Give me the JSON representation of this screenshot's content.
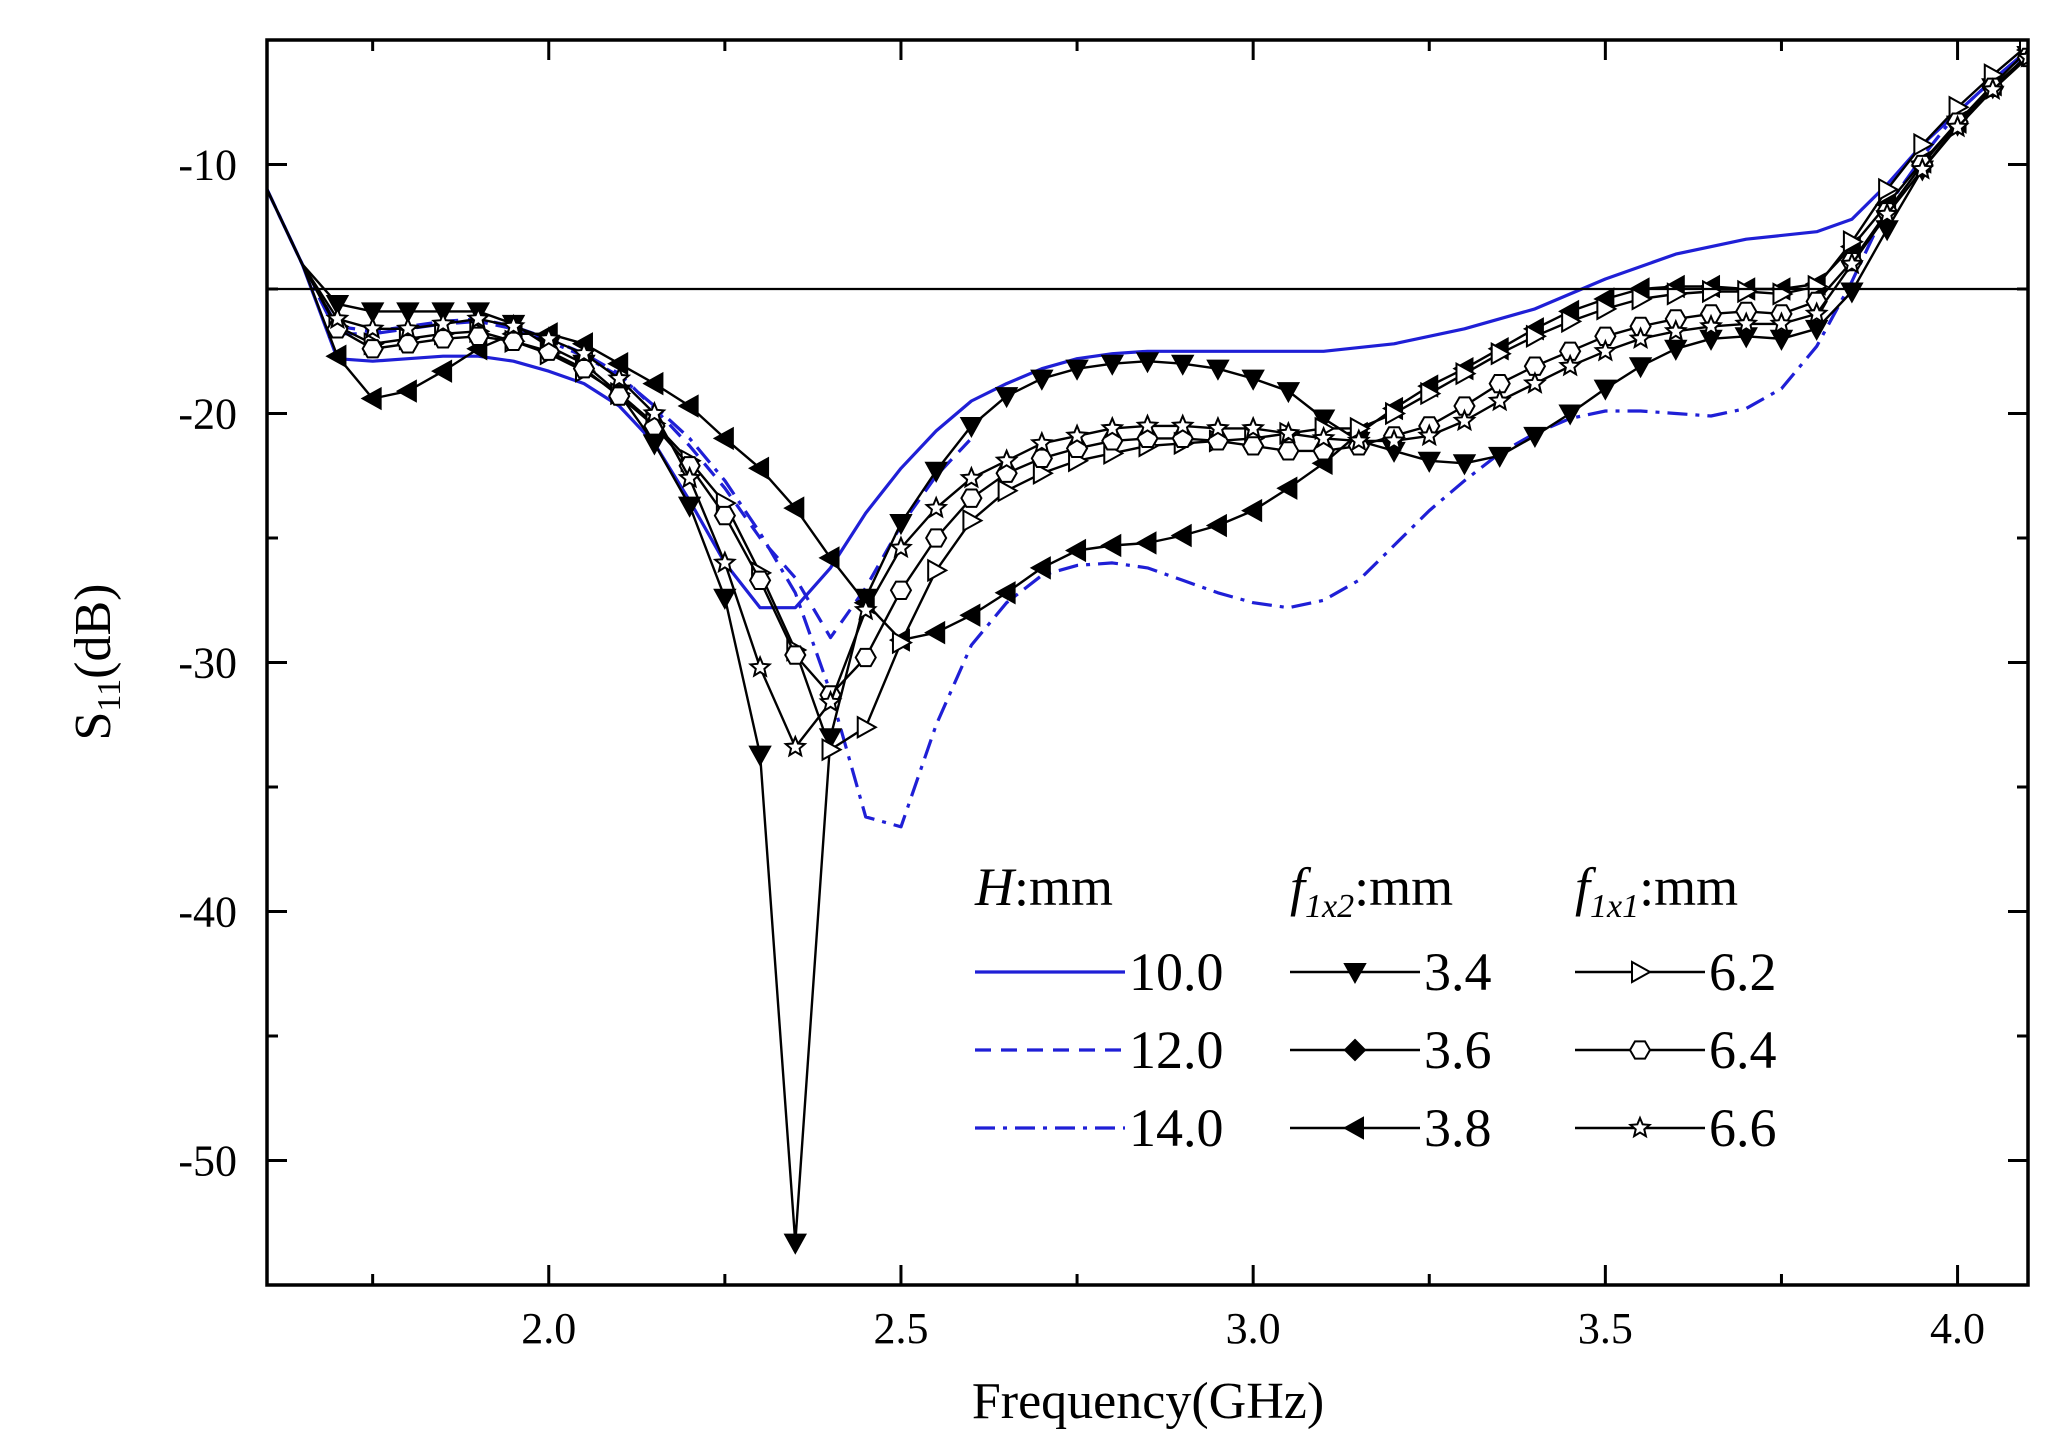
{
  "chart_data": {
    "type": "line",
    "title": "",
    "xlabel": "Frequency(GHz)",
    "ylabel_main": "S",
    "ylabel_sub": "11",
    "ylabel_tail": "(dB)",
    "xlim": [
      1.6,
      4.1
    ],
    "ylim": [
      -55,
      -5
    ],
    "xticks": [
      2.0,
      2.5,
      3.0,
      3.5,
      4.0
    ],
    "xtick_labels": [
      "2.0",
      "2.5",
      "3.0",
      "3.5",
      "4.0"
    ],
    "yticks": [
      -10,
      -20,
      -30,
      -40,
      -50
    ],
    "ytick_labels": [
      "-10",
      "-20",
      "-30",
      "-40",
      "-50"
    ],
    "reference_line_y": -15,
    "legend": {
      "placement": "bottom-right",
      "group_heads": [
        {
          "italic": "H",
          "sub": "",
          "rest": ":mm"
        },
        {
          "italic": "f",
          "sub": "1x2",
          "rest": ":mm"
        },
        {
          "italic": "f",
          "sub": "1x1",
          "rest": ":mm"
        }
      ]
    },
    "series": [
      {
        "name": "10.0",
        "group": "H",
        "color": "#1f1fd6",
        "dash": "solid",
        "marker": "none",
        "x": [
          1.6,
          1.65,
          1.7,
          1.75,
          1.8,
          1.85,
          1.9,
          1.95,
          2.0,
          2.05,
          2.1,
          2.15,
          2.2,
          2.25,
          2.3,
          2.35,
          2.4,
          2.45,
          2.5,
          2.55,
          2.6,
          2.65,
          2.7,
          2.75,
          2.8,
          2.85,
          2.9,
          2.95,
          3.0,
          3.05,
          3.1,
          3.2,
          3.3,
          3.4,
          3.5,
          3.6,
          3.7,
          3.8,
          3.85,
          3.9,
          3.95,
          4.0,
          4.05,
          4.1
        ],
        "y": [
          -11,
          -14,
          -17.8,
          -17.9,
          -17.8,
          -17.7,
          -17.7,
          -17.9,
          -18.3,
          -18.8,
          -19.7,
          -21.2,
          -23.5,
          -26,
          -27.8,
          -27.8,
          -26.2,
          -24,
          -22.2,
          -20.7,
          -19.5,
          -18.8,
          -18.2,
          -17.8,
          -17.6,
          -17.5,
          -17.5,
          -17.5,
          -17.5,
          -17.5,
          -17.5,
          -17.2,
          -16.6,
          -15.8,
          -14.6,
          -13.6,
          -13,
          -12.7,
          -12.2,
          -10.8,
          -9.2,
          -7.9,
          -6.6,
          -5.4
        ]
      },
      {
        "name": "12.0",
        "group": "H",
        "color": "#1f1fd6",
        "dash": "dashed",
        "marker": "none",
        "x": [
          1.6,
          1.65,
          1.7,
          1.75,
          1.8,
          1.85,
          1.9,
          1.95,
          2.0,
          2.05,
          2.1,
          2.15,
          2.2,
          2.25,
          2.3,
          2.35,
          2.4,
          2.45,
          2.5,
          2.55,
          2.6
        ],
        "y": [
          -11,
          -14,
          -16.5,
          -16.7,
          -16.5,
          -16.3,
          -16.2,
          -16.5,
          -17,
          -17.6,
          -18.4,
          -19.8,
          -21.3,
          -23,
          -25,
          -26.6,
          -29,
          -27,
          -24.5,
          -22.5,
          -21
        ]
      },
      {
        "name": "14.0",
        "group": "H",
        "color": "#1f1fd6",
        "dash": "dashdot",
        "marker": "none",
        "x": [
          1.6,
          1.65,
          1.7,
          1.75,
          1.8,
          1.85,
          1.9,
          1.95,
          2.0,
          2.05,
          2.1,
          2.15,
          2.2,
          2.25,
          2.3,
          2.35,
          2.4,
          2.45,
          2.5,
          2.55,
          2.6,
          2.65,
          2.7,
          2.75,
          2.8,
          2.85,
          2.9,
          2.95,
          3.0,
          3.05,
          3.1,
          3.15,
          3.2,
          3.25,
          3.3,
          3.35,
          3.4,
          3.45,
          3.5,
          3.55,
          3.6,
          3.65,
          3.7,
          3.75,
          3.8,
          3.85,
          3.9,
          3.95,
          4.0,
          4.05,
          4.1
        ],
        "y": [
          -11,
          -14,
          -16.8,
          -16.8,
          -16.6,
          -16.4,
          -16.3,
          -16.6,
          -17.1,
          -17.7,
          -18.5,
          -19.7,
          -21,
          -22.7,
          -24.8,
          -27.2,
          -31.2,
          -36.2,
          -36.6,
          -32.5,
          -29.3,
          -27.6,
          -26.5,
          -26.1,
          -26,
          -26.2,
          -26.7,
          -27.2,
          -27.6,
          -27.8,
          -27.5,
          -26.7,
          -25.3,
          -23.9,
          -22.7,
          -21.6,
          -20.8,
          -20.2,
          -19.9,
          -19.9,
          -20,
          -20.1,
          -19.8,
          -19,
          -17.3,
          -14.7,
          -11.7,
          -9.7,
          -7.9,
          -6.6,
          -5.5
        ]
      },
      {
        "name": "3.4",
        "group": "f1x2",
        "color": "#000000",
        "dash": "solid",
        "marker": "triangle-down",
        "x": [
          1.6,
          1.65,
          1.7,
          1.75,
          1.8,
          1.85,
          1.9,
          1.95,
          2.0,
          2.05,
          2.1,
          2.15,
          2.2,
          2.25,
          2.3,
          2.35,
          2.4,
          2.45,
          2.5,
          2.55,
          2.6,
          2.65,
          2.7,
          2.75,
          2.8,
          2.85,
          2.9,
          2.95,
          3.0,
          3.05,
          3.1,
          3.15,
          3.2,
          3.25,
          3.3,
          3.35,
          3.4,
          3.45,
          3.5,
          3.55,
          3.6,
          3.65,
          3.7,
          3.75,
          3.8,
          3.85,
          3.9,
          3.95,
          4.0,
          4.05,
          4.1
        ],
        "y": [
          -11,
          -14,
          -15.6,
          -15.9,
          -15.9,
          -15.9,
          -15.9,
          -16.4,
          -17.3,
          -18,
          -19.2,
          -21.2,
          -23.7,
          -27.4,
          -33.7,
          -53.3,
          -33,
          -27.4,
          -24.4,
          -22.3,
          -20.5,
          -19.3,
          -18.6,
          -18.2,
          -18,
          -17.9,
          -18,
          -18.2,
          -18.6,
          -19.1,
          -20.2,
          -21.1,
          -21.5,
          -21.9,
          -22,
          -21.7,
          -20.9,
          -20,
          -19,
          -18.1,
          -17.4,
          -17,
          -16.9,
          -17,
          -16.6,
          -15.1,
          -12.6,
          -10.2,
          -8.4,
          -6.9,
          -5.6
        ]
      },
      {
        "name": "3.6",
        "group": "f1x2",
        "color": "#000000",
        "dash": "solid",
        "marker": "diamond",
        "x": [],
        "y": []
      },
      {
        "name": "3.8",
        "group": "f1x2",
        "color": "#000000",
        "dash": "solid",
        "marker": "triangle-left",
        "x": [
          1.6,
          1.65,
          1.7,
          1.75,
          1.8,
          1.85,
          1.9,
          1.95,
          2.0,
          2.05,
          2.1,
          2.15,
          2.2,
          2.25,
          2.3,
          2.35,
          2.4,
          2.45,
          2.5,
          2.55,
          2.6,
          2.65,
          2.7,
          2.75,
          2.8,
          2.85,
          2.9,
          2.95,
          3.0,
          3.05,
          3.1,
          3.15,
          3.2,
          3.25,
          3.3,
          3.35,
          3.4,
          3.45,
          3.5,
          3.55,
          3.6,
          3.65,
          3.7,
          3.75,
          3.8,
          3.85,
          3.9,
          3.95,
          4.0,
          4.05,
          4.1
        ],
        "y": [
          -11,
          -14,
          -17.7,
          -19.4,
          -19.1,
          -18.3,
          -17.4,
          -16.8,
          -16.8,
          -17.2,
          -18,
          -18.8,
          -19.7,
          -21,
          -22.2,
          -23.8,
          -25.8,
          -27.6,
          -29.1,
          -28.8,
          -28.1,
          -27.2,
          -26.2,
          -25.5,
          -25.3,
          -25.2,
          -24.9,
          -24.5,
          -23.9,
          -23,
          -22,
          -20.8,
          -19.8,
          -18.9,
          -18.2,
          -17.4,
          -16.6,
          -15.9,
          -15.4,
          -15,
          -14.9,
          -14.9,
          -15,
          -15,
          -14.8,
          -13.3,
          -11.6,
          -9.9,
          -8.3,
          -6.8,
          -5.4
        ]
      },
      {
        "name": "6.2",
        "group": "f1x1",
        "color": "#000000",
        "dash": "solid",
        "marker": "triangle-right-open",
        "x": [
          1.6,
          1.65,
          1.7,
          1.75,
          1.8,
          1.85,
          1.9,
          1.95,
          2.0,
          2.05,
          2.1,
          2.15,
          2.2,
          2.25,
          2.3,
          2.35,
          2.4,
          2.45,
          2.5,
          2.55,
          2.6,
          2.65,
          2.7,
          2.75,
          2.8,
          2.85,
          2.9,
          2.95,
          3.0,
          3.05,
          3.1,
          3.15,
          3.2,
          3.25,
          3.3,
          3.35,
          3.4,
          3.45,
          3.5,
          3.55,
          3.6,
          3.65,
          3.7,
          3.75,
          3.8,
          3.85,
          3.9,
          3.95,
          4.0,
          4.05,
          4.1
        ],
        "y": [
          -11,
          -14,
          -16.5,
          -17.2,
          -17,
          -16.8,
          -16.7,
          -17.1,
          -17.6,
          -18.3,
          -19.2,
          -20.4,
          -21.9,
          -23.6,
          -26.4,
          -29.5,
          -33.5,
          -32.6,
          -29.2,
          -26.3,
          -24.3,
          -23.1,
          -22.4,
          -21.9,
          -21.6,
          -21.3,
          -21.2,
          -21.1,
          -21,
          -20.8,
          -20.6,
          -20.6,
          -20,
          -19.2,
          -18.4,
          -17.6,
          -16.9,
          -16.3,
          -15.8,
          -15.4,
          -15.2,
          -15.1,
          -15.1,
          -15.2,
          -14.9,
          -13.1,
          -11,
          -9.2,
          -7.7,
          -6.4,
          -5.2
        ]
      },
      {
        "name": "6.4",
        "group": "f1x1",
        "color": "#000000",
        "dash": "solid",
        "marker": "hexagon-open",
        "x": [
          1.6,
          1.65,
          1.7,
          1.75,
          1.8,
          1.85,
          1.9,
          1.95,
          2.0,
          2.05,
          2.1,
          2.15,
          2.2,
          2.25,
          2.3,
          2.35,
          2.4,
          2.45,
          2.5,
          2.55,
          2.6,
          2.65,
          2.7,
          2.75,
          2.8,
          2.85,
          2.9,
          2.95,
          3.0,
          3.05,
          3.1,
          3.15,
          3.2,
          3.25,
          3.3,
          3.35,
          3.4,
          3.45,
          3.5,
          3.55,
          3.6,
          3.65,
          3.7,
          3.75,
          3.8,
          3.85,
          3.9,
          3.95,
          4.0,
          4.05,
          4.1
        ],
        "y": [
          -11,
          -14,
          -16.6,
          -17.4,
          -17.2,
          -17,
          -16.9,
          -17.1,
          -17.5,
          -18.2,
          -19.3,
          -20.5,
          -22.1,
          -24.1,
          -26.7,
          -29.7,
          -31.3,
          -29.8,
          -27.1,
          -25,
          -23.4,
          -22.4,
          -21.8,
          -21.4,
          -21.1,
          -21,
          -21,
          -21.1,
          -21.3,
          -21.5,
          -21.5,
          -21.3,
          -20.9,
          -20.5,
          -19.7,
          -18.8,
          -18.1,
          -17.5,
          -16.9,
          -16.5,
          -16.2,
          -16,
          -15.9,
          -16,
          -15.5,
          -13.9,
          -11.9,
          -10,
          -8.3,
          -6.9,
          -5.7
        ]
      },
      {
        "name": "6.6",
        "group": "f1x1",
        "color": "#000000",
        "dash": "solid",
        "marker": "star-open",
        "x": [
          1.6,
          1.65,
          1.7,
          1.75,
          1.8,
          1.85,
          1.9,
          1.95,
          2.0,
          2.05,
          2.1,
          2.15,
          2.2,
          2.25,
          2.3,
          2.35,
          2.4,
          2.45,
          2.5,
          2.55,
          2.6,
          2.65,
          2.7,
          2.75,
          2.8,
          2.85,
          2.9,
          2.95,
          3.0,
          3.05,
          3.1,
          3.15,
          3.2,
          3.25,
          3.3,
          3.35,
          3.4,
          3.45,
          3.5,
          3.55,
          3.6,
          3.65,
          3.7,
          3.75,
          3.8,
          3.85,
          3.9,
          3.95,
          4.0,
          4.05,
          4.1
        ],
        "y": [
          -11,
          -14,
          -16.2,
          -16.6,
          -16.6,
          -16.4,
          -16.2,
          -16.5,
          -17,
          -17.6,
          -18.6,
          -20,
          -22.6,
          -26,
          -30.2,
          -33.4,
          -31.6,
          -27.9,
          -25.4,
          -23.8,
          -22.6,
          -21.9,
          -21.2,
          -20.9,
          -20.6,
          -20.5,
          -20.5,
          -20.6,
          -20.6,
          -20.8,
          -21,
          -21.1,
          -21.1,
          -20.9,
          -20.3,
          -19.5,
          -18.8,
          -18.1,
          -17.5,
          -17,
          -16.7,
          -16.5,
          -16.4,
          -16.4,
          -16,
          -14,
          -12,
          -10.2,
          -8.5,
          -7,
          -5.7
        ]
      }
    ]
  }
}
